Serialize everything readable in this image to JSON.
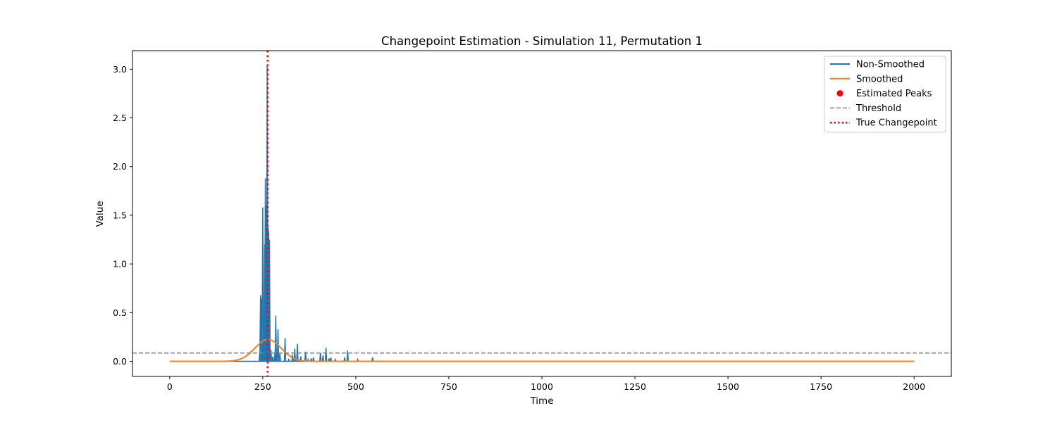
{
  "chart_data": {
    "type": "line",
    "title": "Changepoint Estimation - Simulation 11, Permutation 1",
    "xlabel": "Time",
    "ylabel": "Value",
    "xlim": [
      -100,
      2100
    ],
    "ylim": [
      -0.155,
      3.19
    ],
    "x_ticks": [
      0,
      250,
      500,
      750,
      1000,
      1250,
      1500,
      1750,
      2000
    ],
    "x_tick_labels": [
      "0",
      "250",
      "500",
      "750",
      "1000",
      "1250",
      "1500",
      "1750",
      "2000"
    ],
    "y_ticks": [
      0.0,
      0.5,
      1.0,
      1.5,
      2.0,
      2.5,
      3.0
    ],
    "y_tick_labels": [
      "0.0",
      "0.5",
      "1.0",
      "1.5",
      "2.0",
      "2.5",
      "3.0"
    ],
    "grid": false,
    "legend_position": "top-right",
    "legend": [
      {
        "label": "Non-Smoothed",
        "kind": "line",
        "color": "#1f77b4"
      },
      {
        "label": "Smoothed",
        "kind": "line",
        "color": "#ff7f0e"
      },
      {
        "label": "Estimated Peaks",
        "kind": "marker",
        "color": "#ff0000"
      },
      {
        "label": "Threshold",
        "kind": "dashed",
        "color": "#808080"
      },
      {
        "label": "True Changepoint",
        "kind": "dotted",
        "color": "#ff0000"
      }
    ],
    "series": [
      {
        "name": "Non-Smoothed",
        "color": "#1f77b4",
        "baseline_range": [
          0,
          2000
        ],
        "spikes": [
          {
            "x": 242,
            "y": 0.1
          },
          {
            "x": 244,
            "y": 0.68
          },
          {
            "x": 247,
            "y": 0.65
          },
          {
            "x": 250,
            "y": 1.58
          },
          {
            "x": 252,
            "y": 0.38
          },
          {
            "x": 255,
            "y": 1.2
          },
          {
            "x": 257,
            "y": 1.88
          },
          {
            "x": 260,
            "y": 1.6
          },
          {
            "x": 262,
            "y": 3.05
          },
          {
            "x": 264,
            "y": 1.38
          },
          {
            "x": 266,
            "y": 1.34
          },
          {
            "x": 268,
            "y": 1.25
          },
          {
            "x": 272,
            "y": 0.12
          },
          {
            "x": 277,
            "y": 0.05
          },
          {
            "x": 283,
            "y": 0.1
          },
          {
            "x": 285,
            "y": 0.47
          },
          {
            "x": 291,
            "y": 0.33
          },
          {
            "x": 296,
            "y": 0.08
          },
          {
            "x": 310,
            "y": 0.24
          },
          {
            "x": 320,
            "y": 0.02
          },
          {
            "x": 330,
            "y": 0.07
          },
          {
            "x": 336,
            "y": 0.13
          },
          {
            "x": 343,
            "y": 0.18
          },
          {
            "x": 352,
            "y": 0.05
          },
          {
            "x": 365,
            "y": 0.1
          },
          {
            "x": 372,
            "y": 0.02
          },
          {
            "x": 380,
            "y": 0.03
          },
          {
            "x": 386,
            "y": 0.04
          },
          {
            "x": 405,
            "y": 0.09
          },
          {
            "x": 412,
            "y": 0.06
          },
          {
            "x": 420,
            "y": 0.14
          },
          {
            "x": 428,
            "y": 0.03
          },
          {
            "x": 433,
            "y": 0.04
          },
          {
            "x": 445,
            "y": 0.02
          },
          {
            "x": 470,
            "y": 0.04
          },
          {
            "x": 478,
            "y": 0.11
          },
          {
            "x": 505,
            "y": 0.02
          },
          {
            "x": 545,
            "y": 0.04
          }
        ]
      },
      {
        "name": "Smoothed",
        "color": "#ff7f0e",
        "curve": "gaussian",
        "center": 264,
        "peak": 0.225,
        "sigma": 35,
        "x_range": [
          0,
          2000
        ]
      }
    ],
    "threshold": {
      "y": 0.085,
      "color": "#808080"
    },
    "true_changepoint": {
      "x": 263,
      "color": "#ff0000"
    },
    "estimated_peaks": []
  }
}
